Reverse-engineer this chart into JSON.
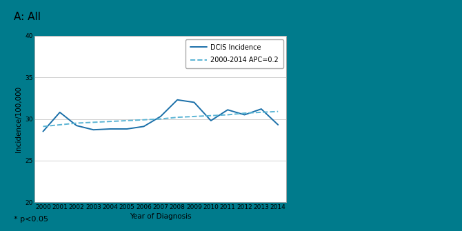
{
  "title": "A: All",
  "footnote": "* p<0.05",
  "xlabel": "Year of Diagnosis",
  "ylabel": "Incidence/100,000",
  "ylim": [
    20,
    40
  ],
  "yticks": [
    20,
    25,
    30,
    35,
    40
  ],
  "years": [
    2000,
    2001,
    2002,
    2003,
    2004,
    2005,
    2006,
    2007,
    2008,
    2009,
    2010,
    2011,
    2012,
    2013,
    2014
  ],
  "dcis_incidence": [
    28.5,
    30.8,
    29.2,
    28.7,
    28.8,
    28.8,
    29.1,
    30.3,
    32.3,
    32.0,
    29.8,
    31.1,
    30.5,
    31.2,
    29.3
  ],
  "trend_line": [
    29.1,
    29.3,
    29.5,
    29.6,
    29.7,
    29.8,
    29.9,
    30.0,
    30.2,
    30.3,
    30.4,
    30.5,
    30.7,
    30.8,
    30.9
  ],
  "line_color": "#1a6fa8",
  "trend_color": "#5ab4d4",
  "background_outer": "#007b8c",
  "background_inner": "#ffffff",
  "legend_label_1": "DCIS Incidence",
  "legend_label_2": "2000-2014 APC=0.2",
  "title_fontsize": 11,
  "label_fontsize": 7.5,
  "tick_fontsize": 6.5,
  "legend_fontsize": 7
}
